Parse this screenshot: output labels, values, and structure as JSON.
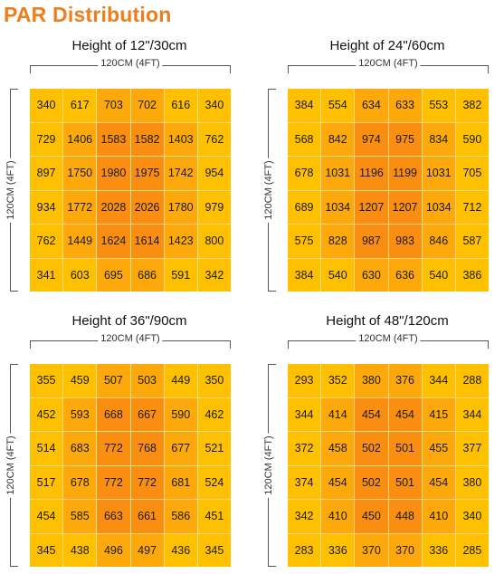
{
  "page": {
    "title": "PAR Distribution"
  },
  "colors": {
    "title": "#f07d1a",
    "zone_edge": "#ffc000",
    "zone_middle": "#fda80b",
    "zone_center": "#f98e10"
  },
  "chart_data": [
    {
      "type": "heatmap",
      "title": "Height of 12\"/30cm",
      "xlabel": "120CM (4FT)",
      "ylabel": "120CM (4FT)",
      "values": [
        [
          340,
          617,
          703,
          702,
          616,
          340
        ],
        [
          729,
          1406,
          1583,
          1582,
          1403,
          762
        ],
        [
          897,
          1750,
          1980,
          1975,
          1742,
          954
        ],
        [
          934,
          1772,
          2028,
          2026,
          1780,
          979
        ],
        [
          762,
          1449,
          1624,
          1614,
          1423,
          800
        ],
        [
          341,
          603,
          695,
          686,
          591,
          342
        ]
      ]
    },
    {
      "type": "heatmap",
      "title": "Height of 24\"/60cm",
      "xlabel": "120CM (4FT)",
      "ylabel": "120CM (4FT)",
      "values": [
        [
          384,
          554,
          634,
          633,
          553,
          382
        ],
        [
          568,
          842,
          974,
          975,
          834,
          590
        ],
        [
          678,
          1031,
          1196,
          1199,
          1031,
          705
        ],
        [
          689,
          1034,
          1207,
          1207,
          1034,
          712
        ],
        [
          575,
          828,
          987,
          983,
          846,
          587
        ],
        [
          384,
          540,
          630,
          636,
          540,
          386
        ]
      ]
    },
    {
      "type": "heatmap",
      "title": "Height of 36\"/90cm",
      "xlabel": "120CM (4FT)",
      "ylabel": "120CM (4FT)",
      "values": [
        [
          355,
          459,
          507,
          503,
          449,
          350
        ],
        [
          452,
          593,
          668,
          667,
          590,
          462
        ],
        [
          514,
          683,
          772,
          768,
          677,
          521
        ],
        [
          517,
          678,
          772,
          772,
          681,
          524
        ],
        [
          454,
          585,
          663,
          661,
          586,
          451
        ],
        [
          345,
          438,
          496,
          497,
          436,
          345
        ]
      ]
    },
    {
      "type": "heatmap",
      "title": "Height of 48\"/120cm",
      "xlabel": "120CM (4FT)",
      "ylabel": "120CM (4FT)",
      "values": [
        [
          293,
          352,
          380,
          376,
          344,
          288
        ],
        [
          344,
          414,
          454,
          454,
          415,
          344
        ],
        [
          372,
          458,
          502,
          501,
          455,
          377
        ],
        [
          374,
          454,
          502,
          501,
          454,
          380
        ],
        [
          342,
          410,
          450,
          448,
          410,
          340
        ],
        [
          283,
          336,
          370,
          370,
          336,
          285
        ]
      ]
    }
  ]
}
